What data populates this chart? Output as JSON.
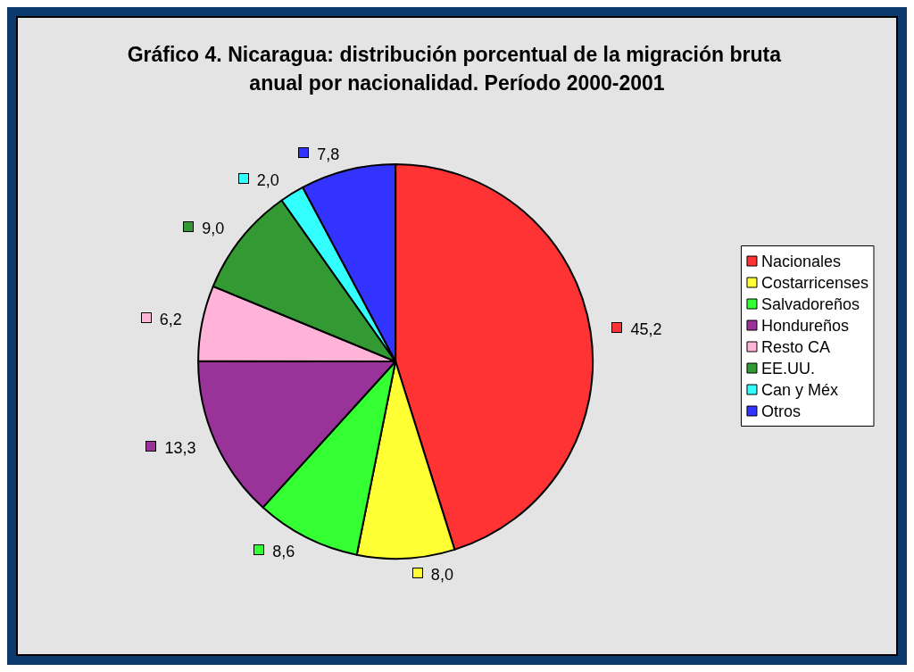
{
  "chart_data": {
    "type": "pie",
    "title": "Gráfico 4. Nicaragua: distribución porcentual de la migración bruta anual por nacionalidad. Período 2000-2001",
    "categories": [
      "Nacionales",
      "Costarricenses",
      "Salvadoreños",
      "Hondureños",
      "Resto CA",
      "EE.UU.",
      "Can y Méx",
      "Otros"
    ],
    "values": [
      45.2,
      8.0,
      8.6,
      13.3,
      6.2,
      9.0,
      2.0,
      7.8
    ],
    "value_labels": [
      "45,2",
      "8,0",
      "8,6",
      "13,3",
      "6,2",
      "9,0",
      "2,0",
      "7,8"
    ],
    "colors": [
      "#ff3333",
      "#ffff33",
      "#33ff33",
      "#993399",
      "#ffb3d9",
      "#339933",
      "#33ffff",
      "#3333ff"
    ],
    "legend": "right"
  }
}
